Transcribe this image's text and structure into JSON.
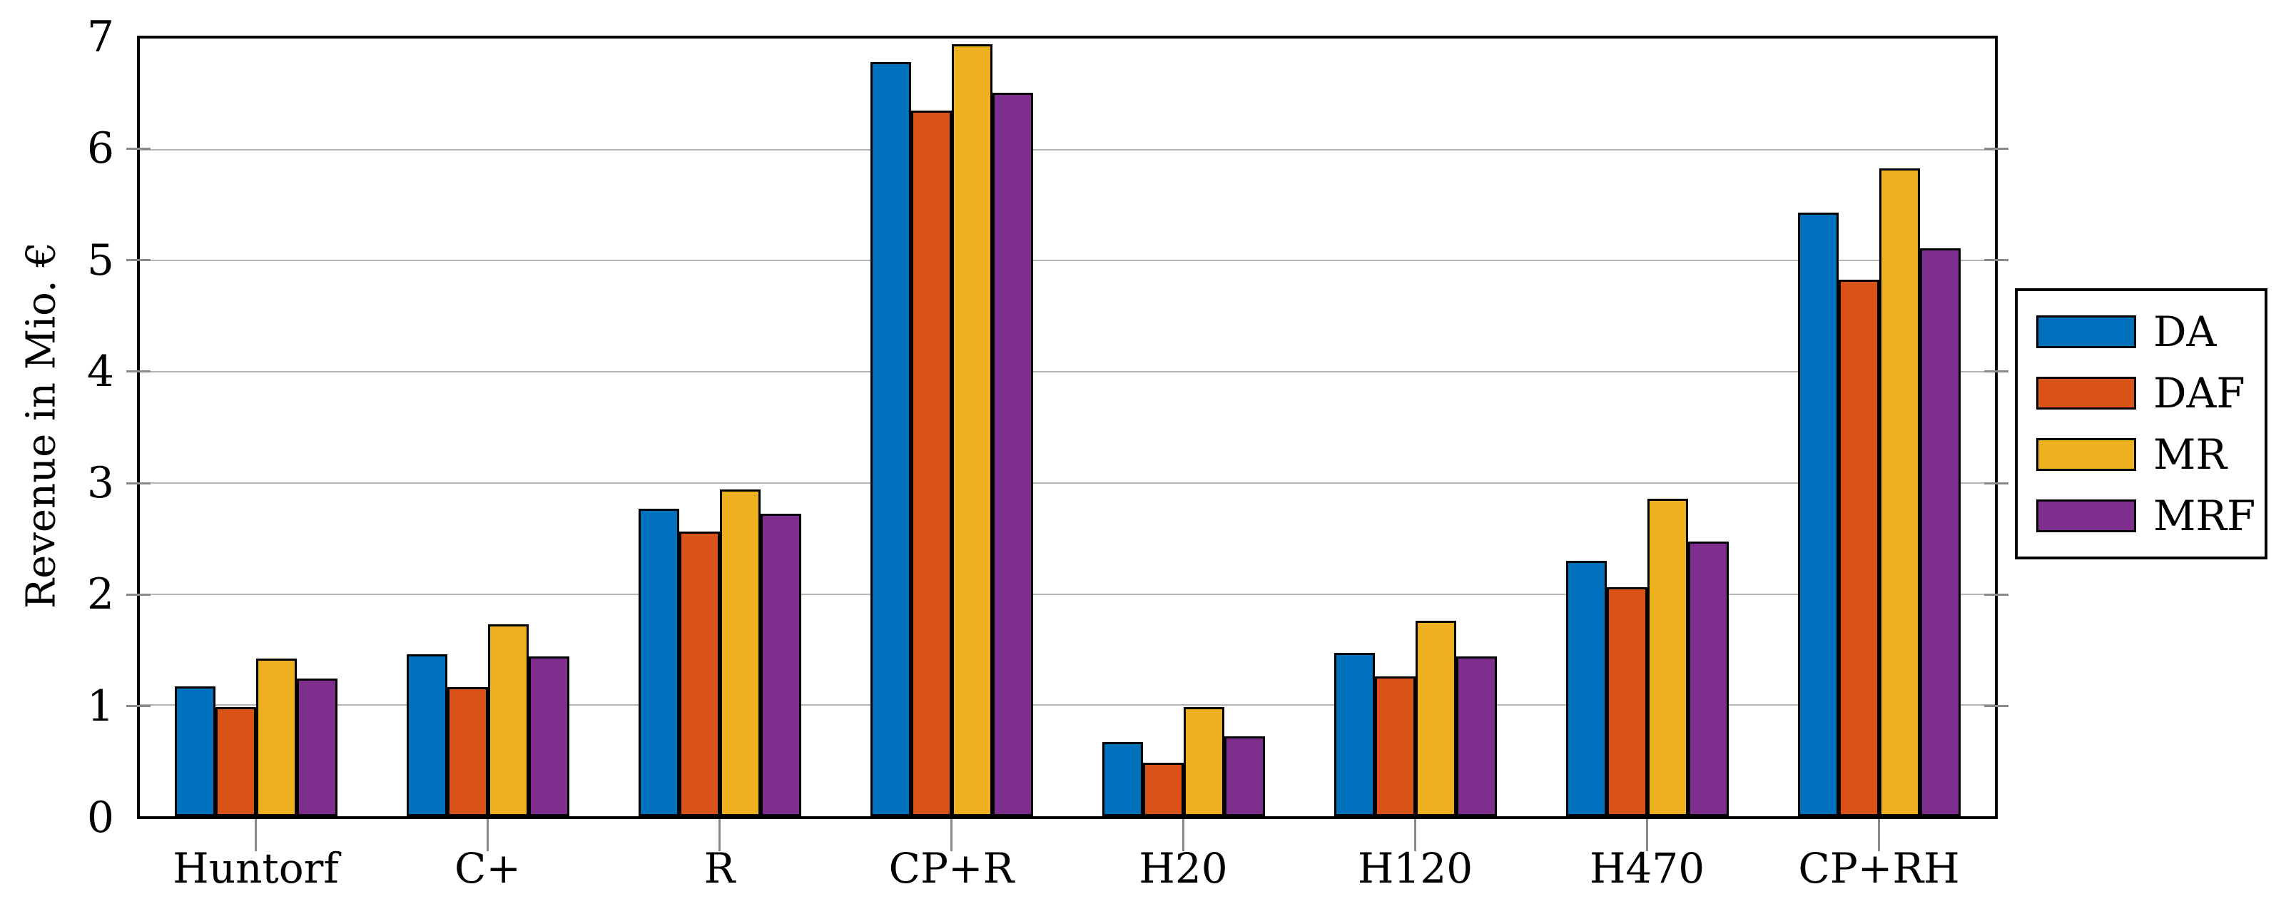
{
  "figure": {
    "background": "#ffffff"
  },
  "chart_data": {
    "type": "bar",
    "title": "",
    "xlabel": "",
    "ylabel": "Revenue in Mio. €",
    "ylim": [
      0,
      7
    ],
    "yticks": [
      0,
      1,
      2,
      3,
      4,
      5,
      6,
      7
    ],
    "grid": "horizontal-major",
    "legend_position": "outside-right",
    "categories": [
      "Huntorf",
      "C+",
      "R",
      "CP+R",
      "H20",
      "H120",
      "H470",
      "CP+RH"
    ],
    "series": [
      {
        "name": "DA",
        "color": "#0072BD",
        "values": [
          1.17,
          1.46,
          2.77,
          6.79,
          0.67,
          1.47,
          2.3,
          5.43
        ]
      },
      {
        "name": "DAF",
        "color": "#D95319",
        "values": [
          0.98,
          1.16,
          2.56,
          6.35,
          0.48,
          1.26,
          2.06,
          4.83
        ]
      },
      {
        "name": "MR",
        "color": "#EDB120",
        "values": [
          1.42,
          1.73,
          2.94,
          6.95,
          0.98,
          1.76,
          2.86,
          5.83
        ]
      },
      {
        "name": "MRF",
        "color": "#7E2F8E",
        "values": [
          1.24,
          1.44,
          2.72,
          6.51,
          0.72,
          1.44,
          2.47,
          5.11
        ]
      }
    ],
    "styles": {
      "bar_border_color": "#000000",
      "axis_frame_color": "#000000",
      "grid_color": "#b5b5b5",
      "tick_color": "#8a8a8a",
      "text_color": "#000000"
    }
  }
}
